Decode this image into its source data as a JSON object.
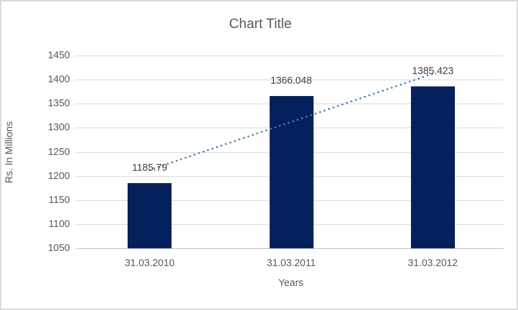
{
  "chart_data": {
    "type": "bar",
    "title": "Chart Title",
    "xlabel": "Years",
    "ylabel": "Rs. In Millions",
    "categories": [
      "31.03.2010",
      "31.03.2011",
      "31.03.2012"
    ],
    "values": [
      1185.79,
      1366.048,
      1385.423
    ],
    "data_labels": [
      "1185.79",
      "1366.048",
      "1385.423"
    ],
    "ylim": [
      1050,
      1450
    ],
    "ytick_step": 50,
    "grid": "horizontal",
    "legend": "none",
    "colors": {
      "bar": "#04215E",
      "trendline": "#3E7CC1",
      "gridline": "#D9D9D9",
      "axis_line": "#BFBFBF",
      "text": "#595959",
      "data_label_text": "#404040",
      "border": "#D9D9D9"
    },
    "trendline": {
      "type": "linear",
      "style": "dotted"
    }
  }
}
